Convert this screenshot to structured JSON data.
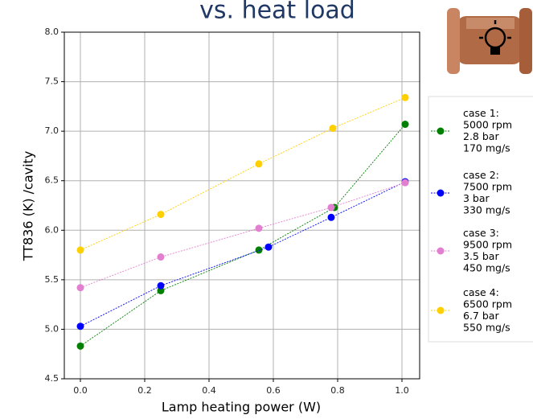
{
  "chart_data": {
    "type": "line",
    "title": "vs. heat load",
    "x_label": "Lamp heating power (W)",
    "y_label": "TT836 (K) /cavity",
    "xlim": [
      -0.05,
      1.055
    ],
    "ylim": [
      4.5,
      8.0
    ],
    "xticks": [
      {
        "value": 0,
        "label": "0.0"
      },
      0.2,
      0.4,
      0.6,
      0.8,
      {
        "value": 1,
        "label": "1.0"
      }
    ],
    "yticks": [
      4.5,
      {
        "value": 5,
        "label": "5.0"
      },
      5.5,
      {
        "value": 6,
        "label": "6.0"
      },
      6.5,
      {
        "value": 7,
        "label": "7.0"
      },
      7.5,
      {
        "value": 8,
        "label": "8.0"
      }
    ],
    "grid": true,
    "legend": "right",
    "series": [
      {
        "name": [
          "case 1:",
          "5000 rpm",
          "2.8 bar",
          " 170 mg/s"
        ],
        "color": "#008000",
        "x": [
          0,
          0.25,
          0.555,
          0.79,
          1.01
        ],
        "values": [
          4.83,
          5.39,
          5.8,
          6.23,
          7.07
        ]
      },
      {
        "name": [
          "case 2:",
          "7500 rpm",
          "3 bar",
          "330 mg/s"
        ],
        "color": "#0000ff",
        "x": [
          0,
          0.25,
          0.585,
          0.78,
          1.01
        ],
        "values": [
          5.03,
          5.44,
          5.83,
          6.13,
          6.49
        ]
      },
      {
        "name": [
          "case 3:",
          " 9500 rpm",
          "3.5 bar",
          "450 mg/s"
        ],
        "color": "#e37fd0",
        "x": [
          0,
          0.25,
          0.555,
          0.78,
          1.01
        ],
        "values": [
          5.42,
          5.73,
          6.02,
          6.23,
          6.48
        ]
      },
      {
        "name": [
          "case 4:",
          " 6500 rpm",
          "6.7 bar",
          "550 mg/s"
        ],
        "color": "#ffd000",
        "x": [
          0,
          0.25,
          0.555,
          0.785,
          1.01
        ],
        "values": [
          5.8,
          6.16,
          6.67,
          7.03,
          7.34
        ]
      }
    ]
  }
}
